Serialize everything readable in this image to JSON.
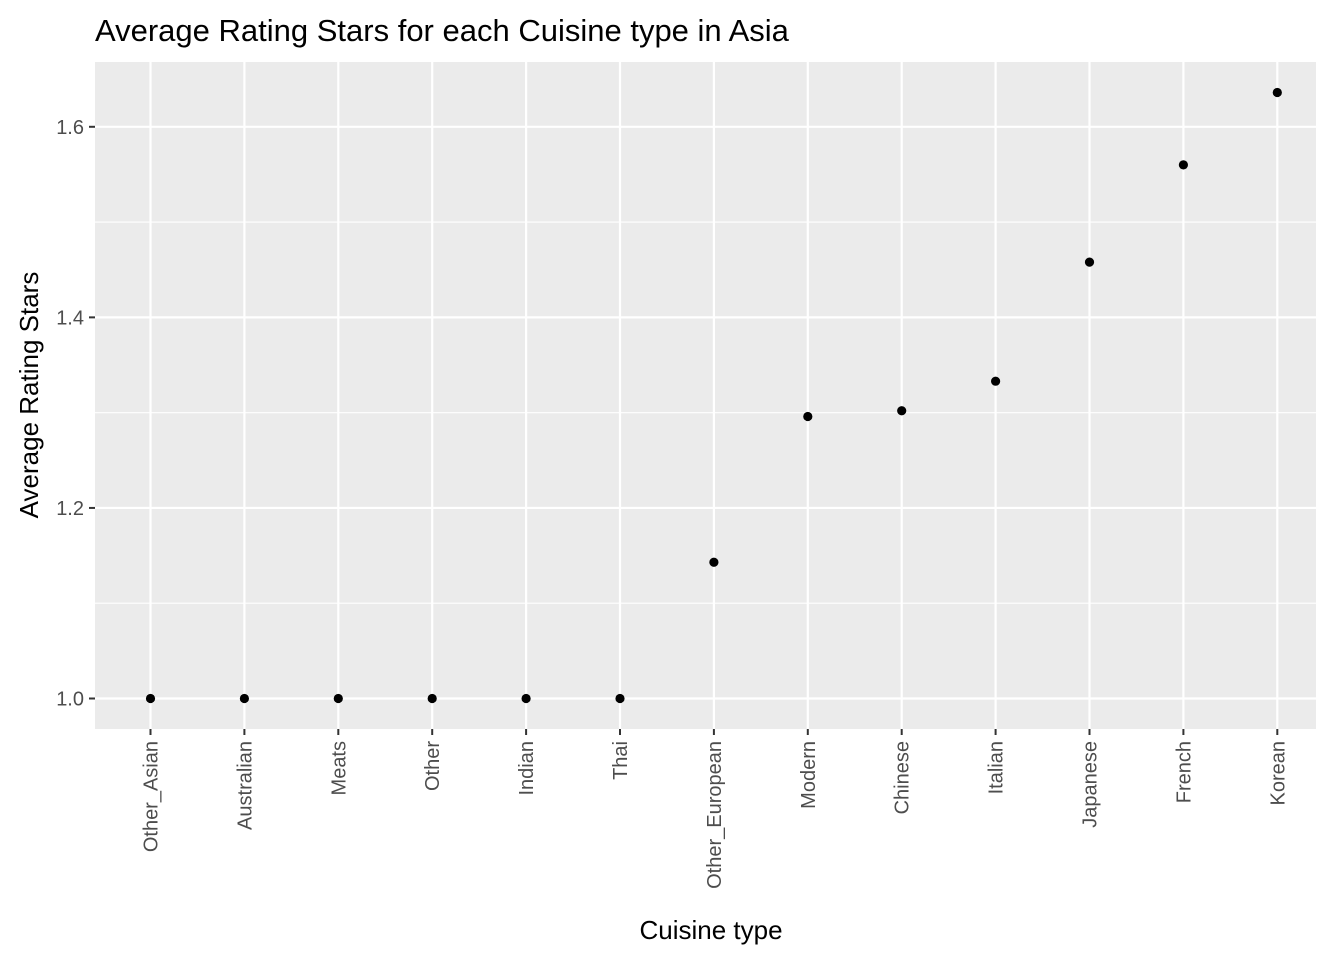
{
  "chart_data": {
    "type": "scatter",
    "title": "Average Rating Stars for each Cuisine type in Asia",
    "xlabel": "Cuisine type",
    "ylabel": "Average Rating Stars",
    "categories": [
      "Other_Asian",
      "Australian",
      "Meats",
      "Other",
      "Indian",
      "Thai",
      "Other_European",
      "Modern",
      "Chinese",
      "Italian",
      "Japanese",
      "French",
      "Korean"
    ],
    "values": [
      1.0,
      1.0,
      1.0,
      1.0,
      1.0,
      1.0,
      1.143,
      1.296,
      1.302,
      1.333,
      1.458,
      1.56,
      1.636
    ],
    "yticks": [
      1.0,
      1.2,
      1.4,
      1.6
    ],
    "ytick_labels": [
      "1.0",
      "1.2",
      "1.4",
      "1.6"
    ],
    "ylim": [
      0.968,
      1.668
    ],
    "grid": true,
    "colors": {
      "panel_background": "#ebebeb",
      "gridline": "#ffffff",
      "point": "#000000",
      "tick_label": "#4d4d4d",
      "tick_mark": "#333333"
    }
  }
}
